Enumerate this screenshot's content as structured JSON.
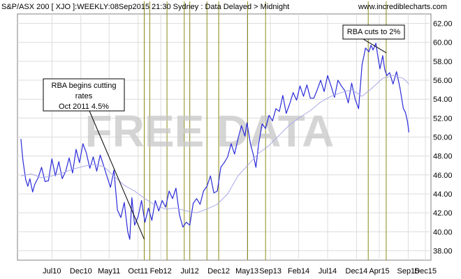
{
  "chart_data": {
    "type": "line",
    "title": "S&P/ASX 200 [ XJO ]:WEEKLY:08Sep2015 21:30 Sydney : Data Delayed > Midnight",
    "site": "www.incrediblecharts.com",
    "watermark": "FREE DATA",
    "ylim": [
      37,
      63
    ],
    "yticks": [
      "38.00",
      "40.00",
      "42.00",
      "44.00",
      "46.00",
      "48.00",
      "50.00",
      "52.00",
      "54.00",
      "56.00",
      "58.00",
      "60.00",
      "62.00"
    ],
    "xlim": [
      2010.0,
      2016.0
    ],
    "xticks": [
      {
        "label": "Jul10",
        "x": 2010.5
      },
      {
        "label": "Dec10",
        "x": 2010.92
      },
      {
        "label": "May11",
        "x": 2011.33
      },
      {
        "label": "Oct11",
        "x": 2011.75
      },
      {
        "label": "Feb12",
        "x": 2012.08
      },
      {
        "label": "Jul12",
        "x": 2012.5
      },
      {
        "label": "Dec12",
        "x": 2012.92
      },
      {
        "label": "May13",
        "x": 2013.33
      },
      {
        "label": "Sep13",
        "x": 2013.67
      },
      {
        "label": "Feb14",
        "x": 2014.08
      },
      {
        "label": "Jul14",
        "x": 2014.5
      },
      {
        "label": "Dec14",
        "x": 2014.92
      },
      {
        "label": "Apr15",
        "x": 2015.25
      },
      {
        "label": "Sep15",
        "x": 2015.67
      },
      {
        "label": "Dec15",
        "x": 2015.92
      }
    ],
    "grid": true,
    "rate_cut_lines": [
      2011.84,
      2011.92,
      2012.17,
      2012.42,
      2012.5,
      2012.75,
      2012.92,
      2013.34,
      2013.6,
      2015.09,
      2015.35
    ],
    "annotations": [
      {
        "lines": [
          "RBA begins cutting",
          "rates",
          "Oct 2011 4.5%"
        ],
        "x": 2011.84,
        "y": 39.2
      },
      {
        "lines": [
          "RBA cuts to 2%"
        ],
        "x": 2015.35,
        "y": 58.9
      }
    ],
    "series": [
      {
        "kind": "price",
        "x": [
          2010.05,
          2010.08,
          2010.12,
          2010.15,
          2010.18,
          2010.22,
          2010.25,
          2010.3,
          2010.35,
          2010.4,
          2010.45,
          2010.5,
          2010.55,
          2010.6,
          2010.65,
          2010.7,
          2010.75,
          2010.8,
          2010.85,
          2010.9,
          2010.95,
          2011.0,
          2011.05,
          2011.1,
          2011.15,
          2011.2,
          2011.25,
          2011.3,
          2011.35,
          2011.4,
          2011.45,
          2011.5,
          2011.55,
          2011.6,
          2011.63,
          2011.66,
          2011.7,
          2011.75,
          2011.8,
          2011.85,
          2011.9,
          2011.95,
          2012.0,
          2012.05,
          2012.1,
          2012.15,
          2012.2,
          2012.25,
          2012.3,
          2012.35,
          2012.4,
          2012.45,
          2012.5,
          2012.55,
          2012.6,
          2012.65,
          2012.7,
          2012.75,
          2012.8,
          2012.85,
          2012.9,
          2012.95,
          2013.0,
          2013.05,
          2013.1,
          2013.15,
          2013.2,
          2013.25,
          2013.3,
          2013.33,
          2013.38,
          2013.42,
          2013.46,
          2013.5,
          2013.55,
          2013.6,
          2013.65,
          2013.7,
          2013.75,
          2013.8,
          2013.85,
          2013.9,
          2013.95,
          2014.0,
          2014.05,
          2014.1,
          2014.15,
          2014.2,
          2014.25,
          2014.3,
          2014.35,
          2014.4,
          2014.45,
          2014.5,
          2014.55,
          2014.6,
          2014.65,
          2014.7,
          2014.75,
          2014.8,
          2014.85,
          2014.9,
          2014.95,
          2015.0,
          2015.05,
          2015.1,
          2015.13,
          2015.16,
          2015.2,
          2015.23,
          2015.26,
          2015.3,
          2015.33,
          2015.36,
          2015.4,
          2015.45,
          2015.5,
          2015.55,
          2015.6,
          2015.63,
          2015.66,
          2015.68
        ],
        "y": [
          49.8,
          47.5,
          45.5,
          44.8,
          45.6,
          44.2,
          45.0,
          45.7,
          46.8,
          45.3,
          45.4,
          47.7,
          45.9,
          47.4,
          45.6,
          46.4,
          47.8,
          46.2,
          48.7,
          47.3,
          49.3,
          48.3,
          46.7,
          47.9,
          46.4,
          48.1,
          47.0,
          45.8,
          44.7,
          46.5,
          42.3,
          41.5,
          43.1,
          40.0,
          39.2,
          43.6,
          40.7,
          41.6,
          43.3,
          41.0,
          42.5,
          41.2,
          43.3,
          42.2,
          43.3,
          42.6,
          44.3,
          43.5,
          44.6,
          41.8,
          40.5,
          41.0,
          40.7,
          43.0,
          43.5,
          42.9,
          44.3,
          44.8,
          45.9,
          44.1,
          44.3,
          46.8,
          47.3,
          47.9,
          49.3,
          48.2,
          49.8,
          51.2,
          50.1,
          51.5,
          49.3,
          48.2,
          46.8,
          49.3,
          51.4,
          50.9,
          52.3,
          51.7,
          53.0,
          52.7,
          54.4,
          52.5,
          53.5,
          54.7,
          53.9,
          55.4,
          54.3,
          55.5,
          54.1,
          54.1,
          55.0,
          56.0,
          54.8,
          56.5,
          55.4,
          54.2,
          56.0,
          55.4,
          54.9,
          53.6,
          55.7,
          54.0,
          53.0,
          57.6,
          59.4,
          59.0,
          59.7,
          59.2,
          59.9,
          58.5,
          57.2,
          58.6,
          57.1,
          56.5,
          56.8,
          55.6,
          56.9,
          55.2,
          53.0,
          52.6,
          51.6,
          50.5
        ]
      },
      {
        "kind": "moving-average",
        "x": [
          2010.05,
          2010.2,
          2010.35,
          2010.5,
          2010.65,
          2010.8,
          2010.95,
          2011.1,
          2011.25,
          2011.4,
          2011.55,
          2011.7,
          2011.85,
          2012.0,
          2012.15,
          2012.3,
          2012.45,
          2012.6,
          2012.75,
          2012.9,
          2013.05,
          2013.2,
          2013.35,
          2013.5,
          2013.65,
          2013.8,
          2013.95,
          2014.1,
          2014.25,
          2014.4,
          2014.55,
          2014.7,
          2014.85,
          2015.0,
          2015.15,
          2015.3,
          2015.45,
          2015.6,
          2015.68
        ],
        "y": [
          45.9,
          46.1,
          45.7,
          45.9,
          46.2,
          46.6,
          46.9,
          47.1,
          46.9,
          45.9,
          44.9,
          44.3,
          43.5,
          42.8,
          42.4,
          42.5,
          42.2,
          42.0,
          42.4,
          42.9,
          44.0,
          45.9,
          47.1,
          48.3,
          49.1,
          50.2,
          51.3,
          52.1,
          52.8,
          53.7,
          54.3,
          54.7,
          55.0,
          54.3,
          55.2,
          56.2,
          56.5,
          56.2,
          55.6
        ]
      }
    ]
  }
}
